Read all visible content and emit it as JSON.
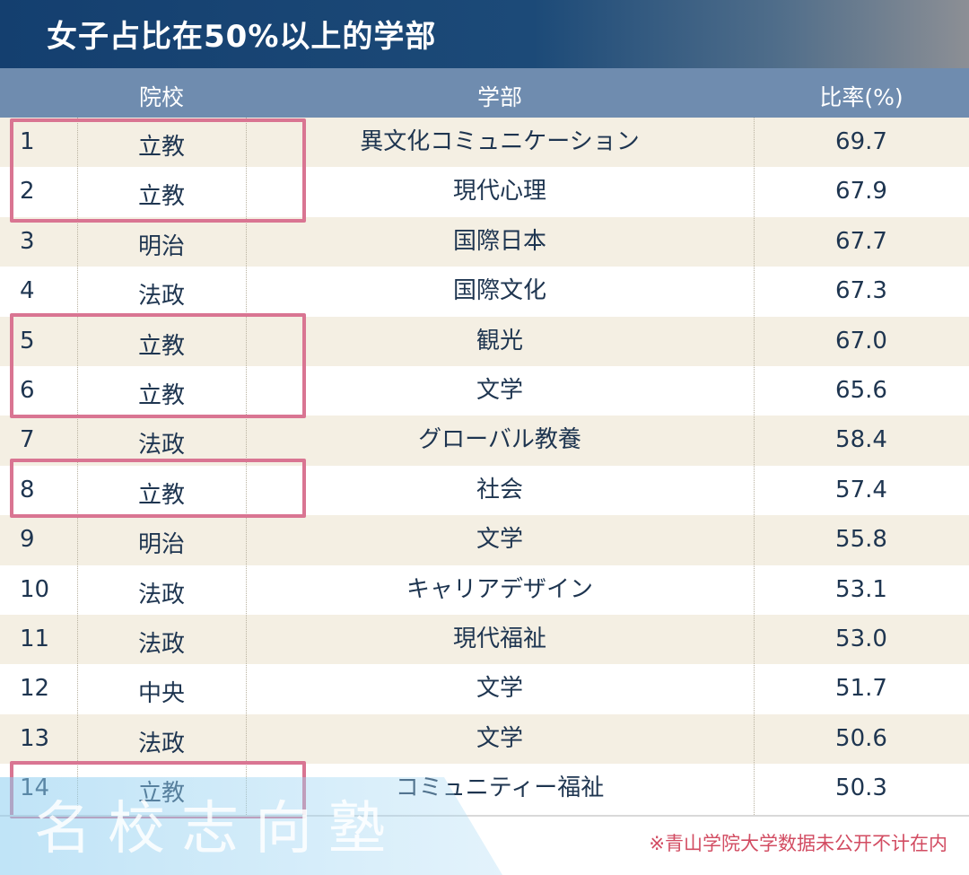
{
  "title": "女子占比在50%以上的学部",
  "columns": {
    "rank": "",
    "school": "院校",
    "department": "学部",
    "ratio": "比率(%)"
  },
  "rows": [
    {
      "rank": "1",
      "school": "立教",
      "department": "異文化コミュニケーション",
      "ratio": "69.7"
    },
    {
      "rank": "2",
      "school": "立教",
      "department": "現代心理",
      "ratio": "67.9"
    },
    {
      "rank": "3",
      "school": "明治",
      "department": "国際日本",
      "ratio": "67.7"
    },
    {
      "rank": "4",
      "school": "法政",
      "department": "国際文化",
      "ratio": "67.3"
    },
    {
      "rank": "5",
      "school": "立教",
      "department": "観光",
      "ratio": "67.0"
    },
    {
      "rank": "6",
      "school": "立教",
      "department": "文学",
      "ratio": "65.6"
    },
    {
      "rank": "7",
      "school": "法政",
      "department": "グローバル教養",
      "ratio": "58.4"
    },
    {
      "rank": "8",
      "school": "立教",
      "department": "社会",
      "ratio": "57.4"
    },
    {
      "rank": "9",
      "school": "明治",
      "department": "文学",
      "ratio": "55.8"
    },
    {
      "rank": "10",
      "school": "法政",
      "department": "キャリアデザイン",
      "ratio": "53.1"
    },
    {
      "rank": "11",
      "school": "法政",
      "department": "現代福祉",
      "ratio": "53.0"
    },
    {
      "rank": "12",
      "school": "中央",
      "department": "文学",
      "ratio": "51.7"
    },
    {
      "rank": "13",
      "school": "法政",
      "department": "文学",
      "ratio": "50.6"
    },
    {
      "rank": "14",
      "school": "立教",
      "department": "コミュニティー福祉",
      "ratio": "50.3"
    }
  ],
  "highlighted_ranks": [
    "1-2",
    "5-6",
    "8",
    "14"
  ],
  "note": "※青山学院大学数据未公开不计在内",
  "watermark": "名校志向塾",
  "colors": {
    "title_bg": "#143f6f",
    "header_bg": "#6f8caf",
    "highlight": "#d97592",
    "note": "#d24c62"
  },
  "chart_data": {
    "type": "table",
    "title": "女子占比在50%以上的学部",
    "columns": [
      "",
      "院校",
      "学部",
      "比率(%)"
    ],
    "rows": [
      [
        "1",
        "立教",
        "異文化コミュニケーション",
        69.7
      ],
      [
        "2",
        "立教",
        "現代心理",
        67.9
      ],
      [
        "3",
        "明治",
        "国際日本",
        67.7
      ],
      [
        "4",
        "法政",
        "国際文化",
        67.3
      ],
      [
        "5",
        "立教",
        "観光",
        67.0
      ],
      [
        "6",
        "立教",
        "文学",
        65.6
      ],
      [
        "7",
        "法政",
        "グローバル教養",
        58.4
      ],
      [
        "8",
        "立教",
        "社会",
        57.4
      ],
      [
        "9",
        "明治",
        "文学",
        55.8
      ],
      [
        "10",
        "法政",
        "キャリアデザイン",
        53.1
      ],
      [
        "11",
        "法政",
        "現代福祉",
        53.0
      ],
      [
        "12",
        "中央",
        "文学",
        51.7
      ],
      [
        "13",
        "法政",
        "文学",
        50.6
      ],
      [
        "14",
        "立教",
        "コミュニティー福祉",
        50.3
      ]
    ]
  }
}
